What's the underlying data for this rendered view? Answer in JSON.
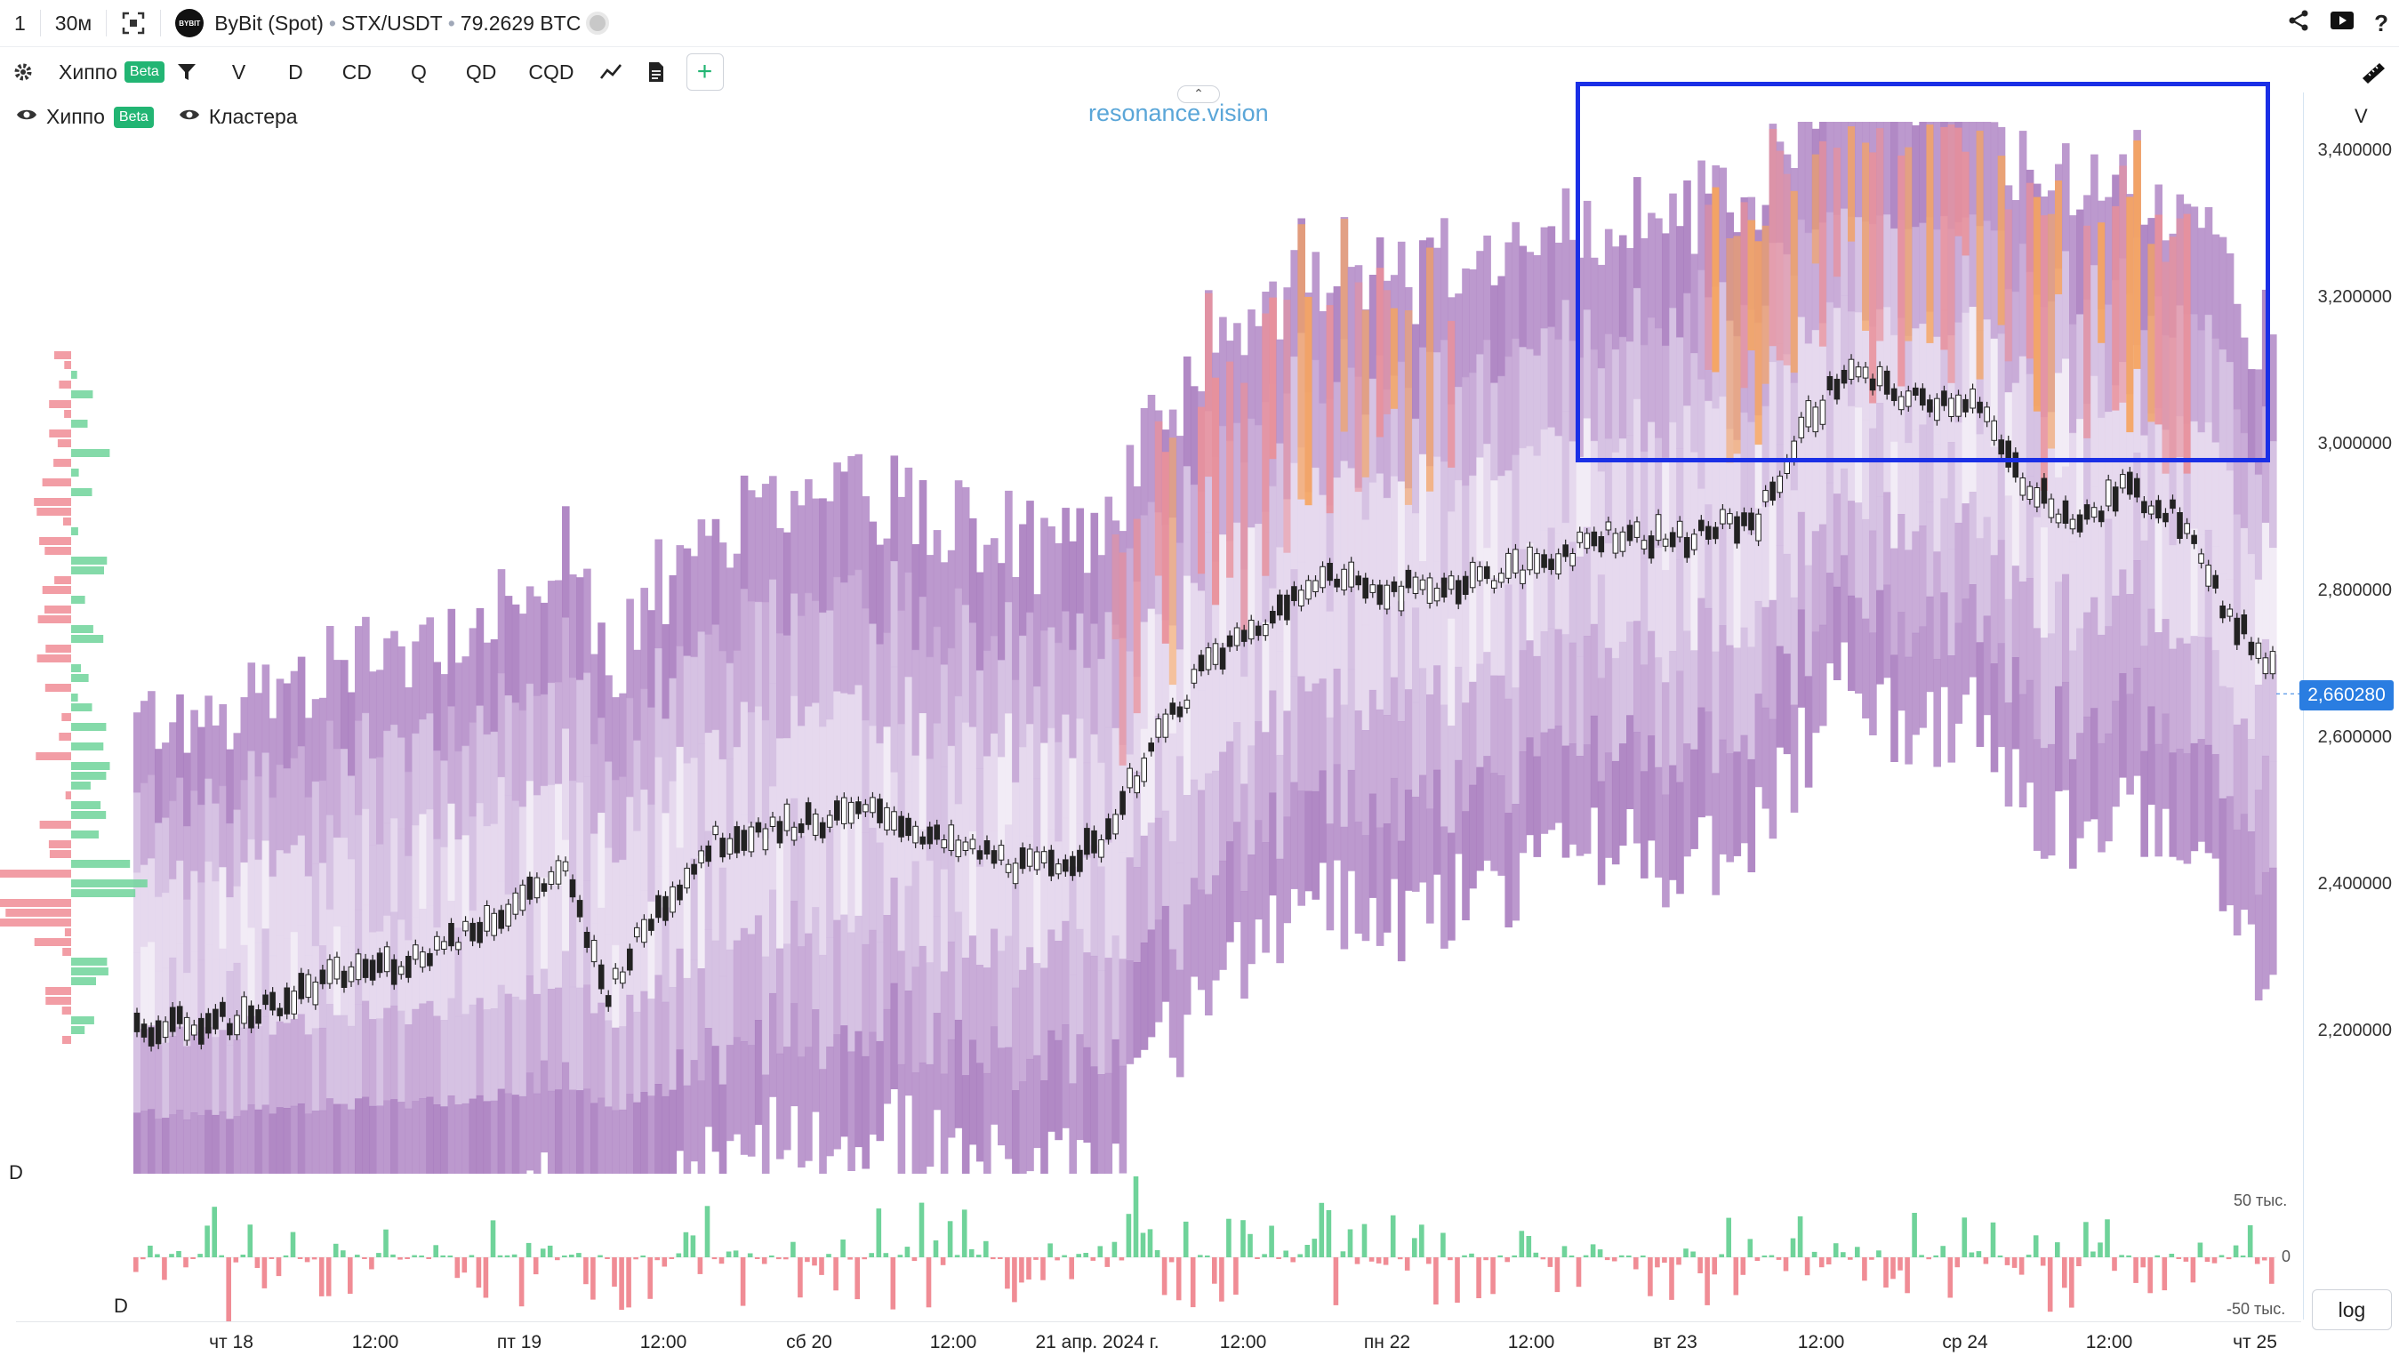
{
  "topbar": {
    "count": "1",
    "interval": "30м",
    "exchange": "ByBit (Spot)",
    "pair": "STX/USDT",
    "volume": "79.2629 BTC",
    "logo_text": "BYBIT"
  },
  "toolbar": {
    "indicator": "Хиппо",
    "beta": "Beta",
    "tools": [
      "V",
      "D",
      "CD",
      "Q",
      "QD",
      "CQD"
    ],
    "plus": "+"
  },
  "legend": {
    "hippo": "Хиппо",
    "beta": "Beta",
    "clusters": "Кластера"
  },
  "watermark": "resonance.vision",
  "price_axis": {
    "header": "V",
    "labels": [
      "3,400000",
      "3,200000",
      "3,000000",
      "2,800000",
      "2,600000",
      "2,400000",
      "2,200000"
    ],
    "current": "2,660280"
  },
  "delta": {
    "label": "D",
    "label2": "D",
    "ticks": [
      "50 тыс.",
      "0",
      "-50 тыс."
    ]
  },
  "time_axis": [
    "чт 18",
    "12:00",
    "пт 19",
    "12:00",
    "сб 20",
    "12:00",
    "21 апр. 2024 г.",
    "12:00",
    "пн 22",
    "12:00",
    "вт 23",
    "12:00",
    "ср 24",
    "12:00",
    "чт 25"
  ],
  "log_button": "log",
  "colors": {
    "accent": "#2a7de1",
    "highlight": "#1a2fe6",
    "up": "#6fd39a",
    "down": "#f08c95",
    "heat_low": "#e9dff0",
    "heat_mid": "#b78bc8",
    "heat_high": "#f6a45e"
  },
  "chart_data": {
    "type": "heatmap",
    "ylim": [
      2200000,
      3400000
    ],
    "current_price": 2660280,
    "price_path": [
      [
        0,
        2200000
      ],
      [
        0.05,
        2220000
      ],
      [
        0.1,
        2280000
      ],
      [
        0.13,
        2300000
      ],
      [
        0.17,
        2360000
      ],
      [
        0.2,
        2420000
      ],
      [
        0.22,
        2250000
      ],
      [
        0.24,
        2350000
      ],
      [
        0.27,
        2460000
      ],
      [
        0.3,
        2480000
      ],
      [
        0.35,
        2500000
      ],
      [
        0.38,
        2450000
      ],
      [
        0.4,
        2440000
      ],
      [
        0.42,
        2420000
      ],
      [
        0.45,
        2450000
      ],
      [
        0.47,
        2560000
      ],
      [
        0.5,
        2700000
      ],
      [
        0.53,
        2760000
      ],
      [
        0.55,
        2820000
      ],
      [
        0.6,
        2800000
      ],
      [
        0.65,
        2830000
      ],
      [
        0.69,
        2880000
      ],
      [
        0.72,
        2870000
      ],
      [
        0.76,
        2900000
      ],
      [
        0.78,
        3020000
      ],
      [
        0.8,
        3100000
      ],
      [
        0.83,
        3060000
      ],
      [
        0.86,
        3060000
      ],
      [
        0.88,
        2960000
      ],
      [
        0.91,
        2890000
      ],
      [
        0.93,
        2940000
      ],
      [
        0.96,
        2900000
      ],
      [
        0.98,
        2760000
      ],
      [
        1.0,
        2700000
      ]
    ]
  }
}
